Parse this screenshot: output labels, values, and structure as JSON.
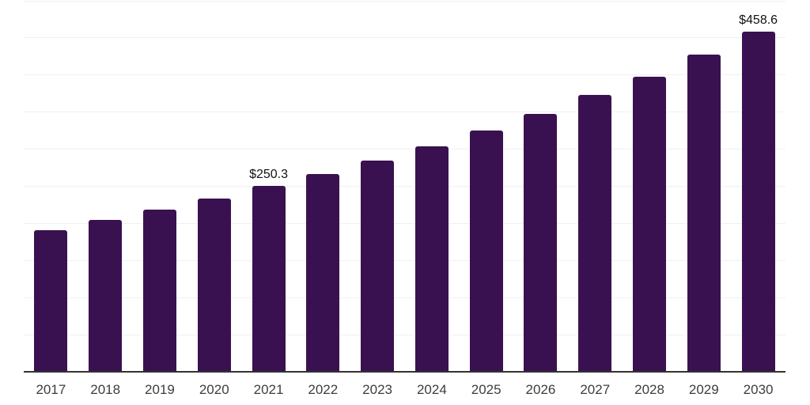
{
  "chart_data": {
    "type": "bar",
    "title": "",
    "xlabel": "",
    "ylabel": "",
    "categories": [
      "2017",
      "2018",
      "2019",
      "2020",
      "2021",
      "2022",
      "2023",
      "2024",
      "2025",
      "2026",
      "2027",
      "2028",
      "2029",
      "2030"
    ],
    "values": [
      191.2,
      204.4,
      218.7,
      234.0,
      250.3,
      266.0,
      284.5,
      304.2,
      325.5,
      348.0,
      372.9,
      397.8,
      427.0,
      458.6
    ],
    "data_labels": [
      {
        "index": 4,
        "category": "2021",
        "text": "$250.3"
      },
      {
        "index": 13,
        "category": "2030",
        "text": "$458.6"
      }
    ],
    "ylim": [
      0,
      500
    ],
    "gridline_interval": 50,
    "grid": "horizontal-only",
    "legend": "none",
    "y_axis_tick_labels_visible": false,
    "colors": {
      "bar": "#3A1150",
      "gridline": "#F0F0F0",
      "axis_line": "#333333",
      "tick_label": "#3D3D3D",
      "data_label": "#111111",
      "background": "#FFFFFF"
    }
  }
}
